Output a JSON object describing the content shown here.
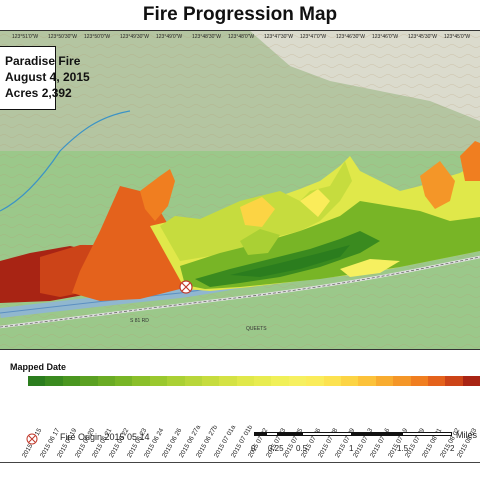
{
  "title": "Fire Progression Map",
  "info_box": {
    "line1": "Paradise Fire",
    "line2": "August 4, 2015",
    "line3": "Acres 2,392"
  },
  "map_coords": [
    "123°51'0\"W",
    "123°50'30\"W",
    "123°50'0\"W",
    "123°49'30\"W",
    "123°49'0\"W",
    "123°48'30\"W",
    "123°48'0\"W",
    "123°47'30\"W",
    "123°47'0\"W",
    "123°46'30\"W",
    "123°46'0\"W",
    "123°45'30\"W",
    "123°45'0\"W"
  ],
  "map_labels": {
    "river": "QUEETS",
    "road_shield": "S 81 RD"
  },
  "legend": {
    "title": "Mapped Date",
    "dates": [
      "2015 06 15",
      "2015 06 17",
      "2015 06 19",
      "2015 06 20",
      "2015 06 21",
      "2015 06 22",
      "2015 06 23",
      "2015 06 24",
      "2015 06 26",
      "2015 06 27a",
      "2015 06 27b",
      "2015 07 01a",
      "2015 07 01b",
      "2015 07 02",
      "2015 07 03",
      "2015 07 05",
      "2015 07 06",
      "2015 07 08",
      "2015 07 09",
      "2015 07 13",
      "2015 07 16",
      "2015 07 19",
      "2015 07 29",
      "2015 08 01",
      "2015 08 02",
      "2015 08 03"
    ],
    "colors": [
      "#2b7d1e",
      "#3a8a1f",
      "#4a9620",
      "#5aa022",
      "#6aab24",
      "#78b526",
      "#8abf2a",
      "#9ac82e",
      "#aad034",
      "#b8d63a",
      "#c6dc3e",
      "#d4e244",
      "#e0e84a",
      "#e8ec50",
      "#f0f058",
      "#f6f060",
      "#faec5a",
      "#fce250",
      "#fcd444",
      "#fcc23a",
      "#f8ac30",
      "#f49628",
      "#f07e20",
      "#e4621c",
      "#cc4418",
      "#a82414"
    ],
    "origin_label": "Fire Origin 2015 05 14"
  },
  "scale": {
    "unit": "Miles",
    "ticks": [
      "0",
      "0.25",
      "0.5",
      "1",
      "1.5",
      "2"
    ]
  }
}
